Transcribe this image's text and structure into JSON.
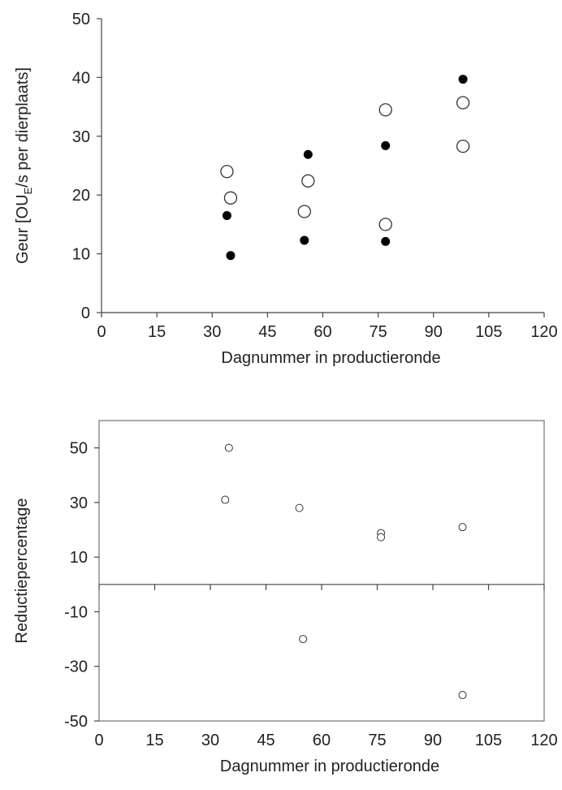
{
  "chart_data": [
    {
      "type": "scatter",
      "ylabel_main": "Geur [OU",
      "ylabel_sub": "E",
      "ylabel_rest": "/s per dierplaats]",
      "xlabel": "Dagnummer  in productieronde",
      "xlim": [
        0,
        120
      ],
      "ylim": [
        0,
        50
      ],
      "xticks": [
        0,
        15,
        30,
        45,
        60,
        75,
        90,
        105,
        120
      ],
      "yticks": [
        0,
        10,
        20,
        30,
        40,
        50
      ],
      "frame": false,
      "series": [
        {
          "marker": "filled-circle",
          "points": [
            [
              34,
              16.5
            ],
            [
              35,
              9.7
            ],
            [
              55,
              12.3
            ],
            [
              56,
              26.9
            ],
            [
              77,
              12.1
            ],
            [
              77,
              28.4
            ],
            [
              98,
              39.7
            ],
            [
              98,
              28.0
            ]
          ]
        },
        {
          "marker": "open-circle",
          "points": [
            [
              34,
              24.0
            ],
            [
              35,
              19.5
            ],
            [
              55,
              17.2
            ],
            [
              56,
              22.4
            ],
            [
              77,
              34.5
            ],
            [
              77,
              15.0
            ],
            [
              98,
              35.7
            ],
            [
              98,
              28.3
            ]
          ]
        }
      ]
    },
    {
      "type": "scatter",
      "ylabel": "Reductiepercentage",
      "xlabel": "Dagnummer  in productieronde",
      "xlim": [
        0,
        120
      ],
      "ylim": [
        -50,
        60
      ],
      "xticks": [
        0,
        15,
        30,
        45,
        60,
        75,
        90,
        105,
        120
      ],
      "yticks": [
        -50,
        -30,
        -10,
        10,
        30,
        50
      ],
      "zero_line": true,
      "frame": true,
      "series": [
        {
          "marker": "open-circle-small",
          "points": [
            [
              34,
              31.0
            ],
            [
              35,
              50.0
            ],
            [
              54,
              28.0
            ],
            [
              55,
              -20.0
            ],
            [
              76,
              18.8
            ],
            [
              76,
              17.3
            ],
            [
              98,
              21.0
            ],
            [
              98,
              -40.5
            ]
          ]
        }
      ]
    }
  ]
}
